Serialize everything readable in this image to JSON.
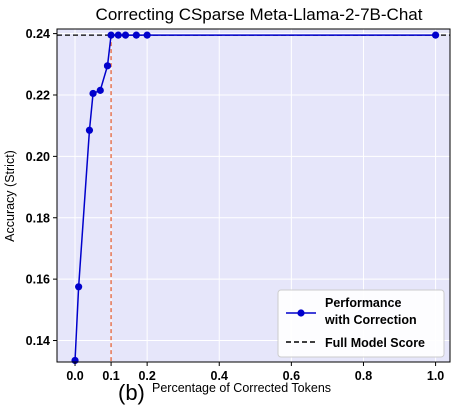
{
  "chart_data": {
    "type": "line",
    "title": "Correcting CSparse Meta-Llama-2-7B-Chat",
    "xlabel": "Percentage of Corrected Tokens",
    "ylabel": "Accuracy (Strict)",
    "panel_label": "(b)",
    "xlim": [
      -0.05,
      1.04
    ],
    "ylim": [
      0.133,
      0.2415
    ],
    "x_ticks": [
      0.0,
      0.1,
      0.2,
      0.4,
      0.6,
      0.8,
      1.0
    ],
    "x_tick_labels": [
      "0.0",
      "0.1",
      "0.2",
      "0.4",
      "0.6",
      "0.8",
      "1.0"
    ],
    "y_ticks": [
      0.14,
      0.16,
      0.18,
      0.2,
      0.22,
      0.24
    ],
    "y_tick_labels": [
      "0.14",
      "0.16",
      "0.18",
      "0.20",
      "0.22",
      "0.24"
    ],
    "grid": true,
    "legend_position": "lower-right",
    "series": [
      {
        "name": "Performance with Correction",
        "legend_lines": [
          "Performance",
          "with Correction"
        ],
        "color": "#0000cc",
        "x": [
          0.0,
          0.01,
          0.04,
          0.05,
          0.07,
          0.09,
          0.1,
          0.12,
          0.14,
          0.17,
          0.2,
          1.0
        ],
        "y": [
          0.1335,
          0.1575,
          0.2085,
          0.2205,
          0.2215,
          0.2295,
          0.2395,
          0.2395,
          0.2395,
          0.2395,
          0.2395,
          0.2395
        ]
      }
    ],
    "reference_line": {
      "name": "Full Model Score",
      "y": 0.2395,
      "color": "#000000",
      "style": "dashed"
    },
    "threshold_line": {
      "x": 0.1,
      "color": "#e8663a",
      "style": "dashed"
    },
    "colors": {
      "plot_background": "#e6e6fa",
      "grid": "#ffffff"
    }
  }
}
